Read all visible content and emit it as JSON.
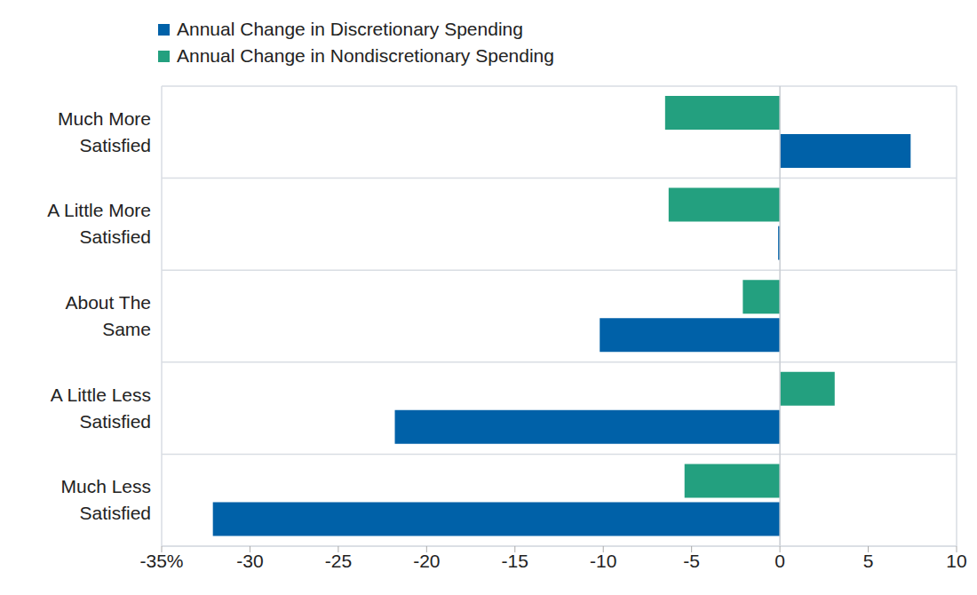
{
  "chart_data": {
    "type": "bar",
    "orientation": "horizontal",
    "categories": [
      "Much More Satisfied",
      "A Little More Satisfied",
      "About The Same",
      "A Little Less Satisfied",
      "Much Less Satisfied"
    ],
    "series": [
      {
        "name": "Annual Change in Discretionary Spending",
        "color": "#0061a8",
        "values": [
          7.4,
          -0.1,
          -10.2,
          -21.8,
          -32.1
        ]
      },
      {
        "name": "Annual Change in Nondiscretionary Spending",
        "color": "#23a07f",
        "values": [
          -6.5,
          -6.3,
          -2.1,
          3.1,
          -5.4
        ]
      }
    ],
    "xlim": [
      -35,
      10
    ],
    "xticks": [
      {
        "value": -35,
        "label": "-35%"
      },
      -30,
      -25,
      -20,
      -15,
      -10,
      -5,
      0,
      5,
      10
    ],
    "grid": true,
    "legend": "top-left"
  }
}
